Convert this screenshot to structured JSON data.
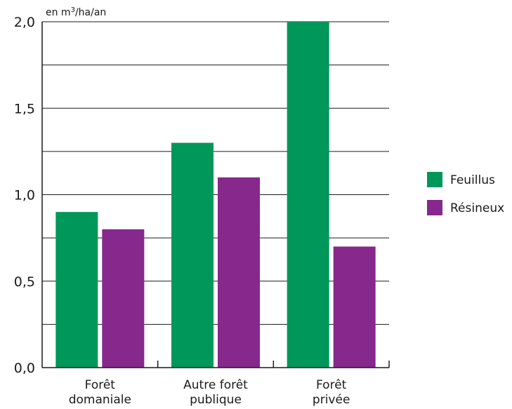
{
  "chart_data": {
    "type": "bar",
    "ylabel": "en m³/ha/an",
    "ylim": [
      0,
      2.0
    ],
    "yticks": [
      "0,0",
      "0,5",
      "1,0",
      "1,5",
      "2,0"
    ],
    "grid": true,
    "legend_position": "right",
    "categories": [
      [
        "Forêt",
        "domaniale"
      ],
      [
        "Autre forêt",
        "publique"
      ],
      [
        "Forêt",
        "privée"
      ]
    ],
    "series": [
      {
        "name": "Feuillus",
        "color": "#00975a",
        "values": [
          0.9,
          1.3,
          2.0
        ]
      },
      {
        "name": "Résineux",
        "color": "#86288c",
        "values": [
          0.8,
          1.1,
          0.7
        ]
      }
    ]
  }
}
